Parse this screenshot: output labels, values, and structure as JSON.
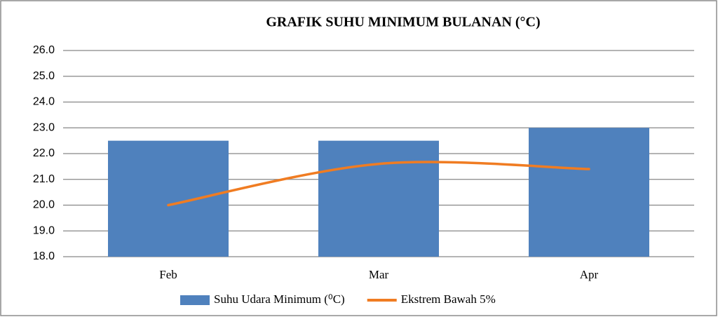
{
  "chart_data": {
    "type": "bar",
    "title": "GRAFIK SUHU MINIMUM BULANAN (°C)",
    "categories": [
      "Feb",
      "Mar",
      "Apr"
    ],
    "series": [
      {
        "name": "Suhu Udara Minimum (⁰C)",
        "type": "bar",
        "color": "#4f81bd",
        "values": [
          22.5,
          22.5,
          23.0
        ]
      },
      {
        "name": "Ekstrem Bawah  5%",
        "type": "line",
        "color": "#f07c22",
        "values": [
          20.0,
          21.6,
          21.4
        ]
      }
    ],
    "ylim": [
      18,
      26
    ],
    "yticks": [
      {
        "value": 18,
        "label": "18.0"
      },
      {
        "value": 19,
        "label": "19.0"
      },
      {
        "value": 20,
        "label": "20.0"
      },
      {
        "value": 21,
        "label": "21.0"
      },
      {
        "value": 22,
        "label": "22.0"
      },
      {
        "value": 23,
        "label": "23.0"
      },
      {
        "value": 24,
        "label": "24.0"
      },
      {
        "value": 25,
        "label": "25.0"
      },
      {
        "value": 26,
        "label": "26.0"
      }
    ],
    "grid": true,
    "legend": "bottom"
  }
}
